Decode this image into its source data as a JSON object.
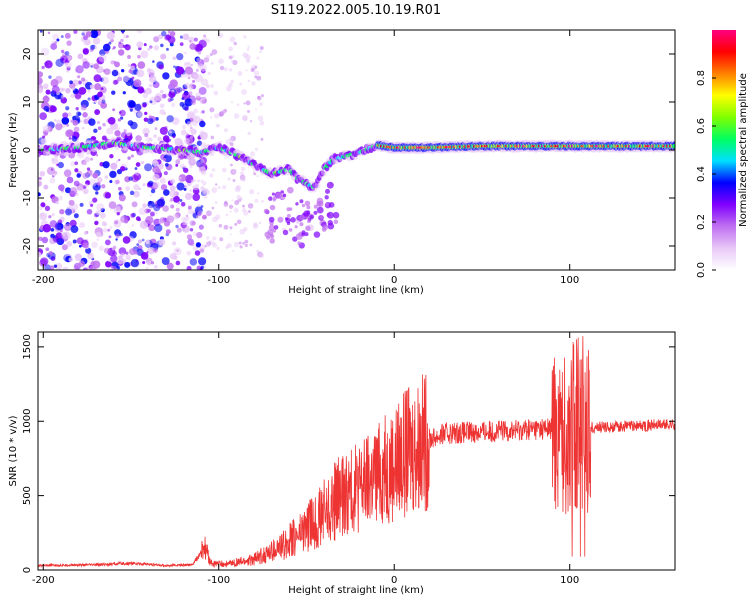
{
  "title": "S119.2022.005.10.19.R01",
  "chart_data": [
    {
      "type": "heatmap",
      "xlabel": "Height of straight line (km)",
      "ylabel": "Frequency (Hz)",
      "xlim": [
        -203,
        160
      ],
      "ylim": [
        -25,
        25
      ],
      "xticks": [
        -200,
        -100,
        0,
        100
      ],
      "yticks": [
        -20,
        -10,
        0,
        10,
        20
      ],
      "colorbar": {
        "label": "Normalized spectral amplitude",
        "range": [
          0,
          1
        ],
        "ticks": [
          "0.0",
          "0.2",
          "0.4",
          "0.6",
          "0.8"
        ],
        "colors": [
          "#ffffff",
          "#e8c8f8",
          "#c070f0",
          "#8000ff",
          "#0000ff",
          "#00e0ff",
          "#00ff60",
          "#80ff00",
          "#ffff00",
          "#ff8000",
          "#ff0000",
          "#ff0080"
        ]
      },
      "ridge": {
        "x": [
          -200,
          -180,
          -160,
          -140,
          -120,
          -110,
          -100,
          -90,
          -80,
          -70,
          -60,
          -55,
          -50,
          -45,
          -40,
          -35,
          -30,
          -20,
          -10,
          0,
          20,
          50,
          80,
          100,
          120,
          160
        ],
        "y": [
          0,
          0.5,
          1.5,
          0.5,
          0,
          -0.5,
          0.5,
          -1,
          -3,
          -5,
          -4,
          -6,
          -7,
          -8,
          -4,
          -2,
          -1.5,
          -0.5,
          1,
          0.5,
          0.5,
          0.8,
          0.8,
          0.8,
          0.8,
          0.8
        ]
      }
    },
    {
      "type": "line",
      "xlabel": "Height of straight line (km)",
      "ylabel": "SNR (10 * v/v)",
      "xlim": [
        -203,
        160
      ],
      "ylim": [
        0,
        1600
      ],
      "xticks": [
        -200,
        -100,
        0,
        100
      ],
      "yticks": [
        0,
        500,
        1000,
        1500
      ],
      "color": "#ee3333",
      "envelope": {
        "x": [
          -203,
          -170,
          -150,
          -130,
          -115,
          -108,
          -104,
          -95,
          -80,
          -65,
          -50,
          -40,
          -30,
          -20,
          -10,
          0,
          10,
          20,
          30,
          50,
          70,
          80,
          90,
          95,
          100,
          103,
          106,
          110,
          120,
          140,
          160
        ],
        "y": [
          30,
          35,
          45,
          30,
          35,
          150,
          40,
          40,
          70,
          150,
          280,
          380,
          500,
          560,
          640,
          720,
          820,
          880,
          920,
          930,
          940,
          950,
          950,
          930,
          900,
          1000,
          1000,
          960,
          960,
          970,
          980
        ]
      }
    }
  ]
}
